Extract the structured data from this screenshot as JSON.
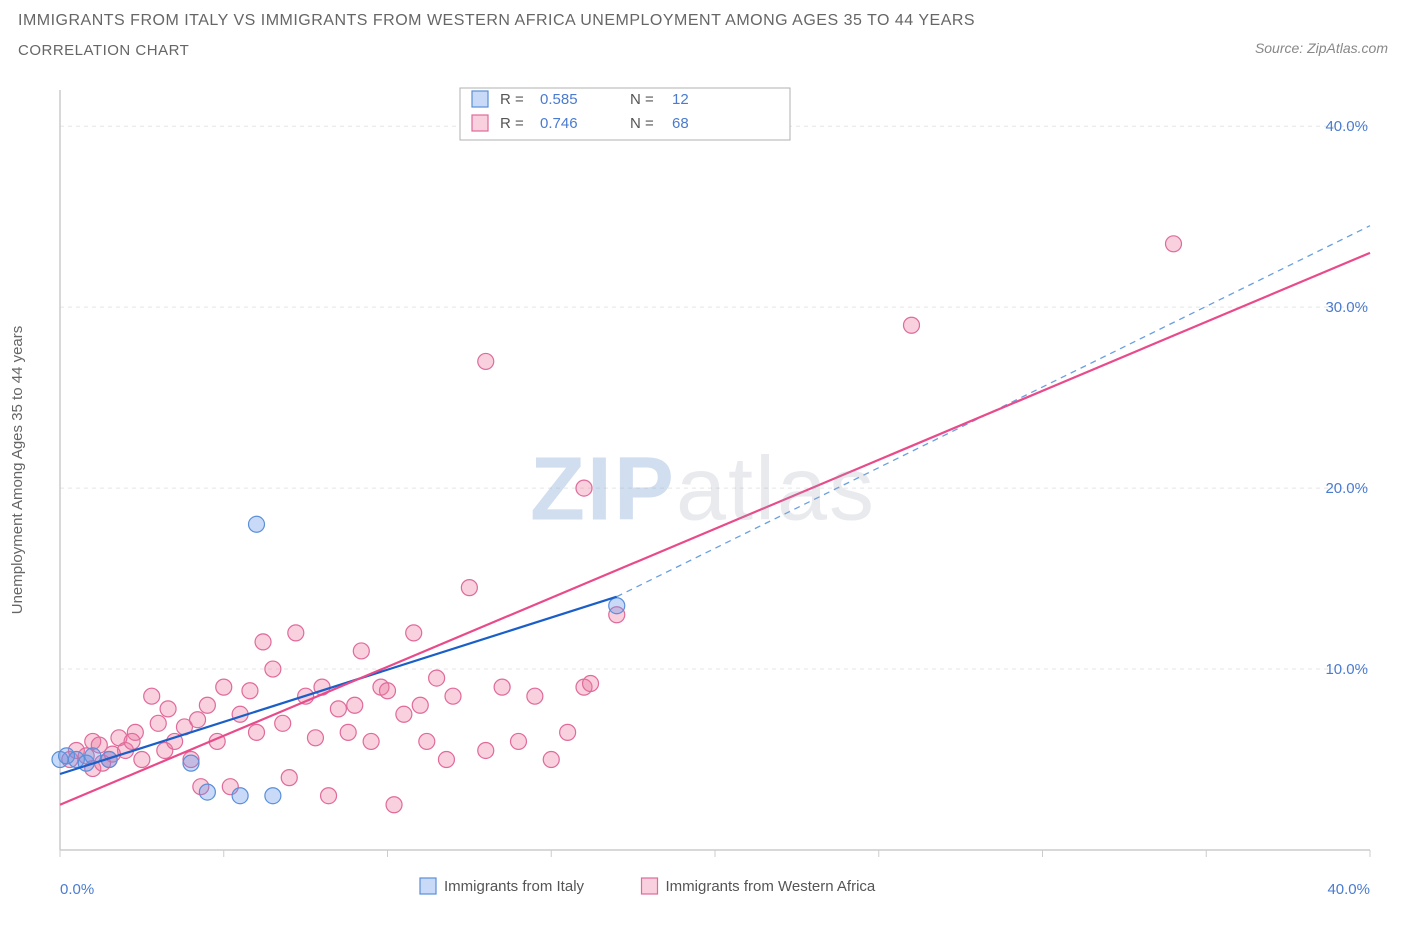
{
  "title_line1": "IMMIGRANTS FROM ITALY VS IMMIGRANTS FROM WESTERN AFRICA UNEMPLOYMENT AMONG AGES 35 TO 44 YEARS",
  "title_line2": "CORRELATION CHART",
  "source_prefix": "Source: ",
  "source_name": "ZipAtlas.com",
  "watermark_zip": "ZIP",
  "watermark_rest": "atlas",
  "chart": {
    "type": "scatter",
    "xlim": [
      0,
      40
    ],
    "ylim": [
      0,
      42
    ],
    "x_axis_label_min": "0.0%",
    "x_axis_label_max": "40.0%",
    "y_label": "Unemployment Among Ages 35 to 44 years",
    "y_ticks": [
      10,
      20,
      30,
      40
    ],
    "y_tick_labels": [
      "10.0%",
      "20.0%",
      "30.0%",
      "40.0%"
    ],
    "x_minor_ticks": [
      0,
      5,
      10,
      15,
      20,
      25,
      30,
      35,
      40
    ],
    "background_color": "#ffffff",
    "grid_color": "#e5e5e5",
    "axis_color": "#cccccc",
    "tick_label_color": "#4a7bd0",
    "axis_text_color": "#666666",
    "series": [
      {
        "name": "Immigrants from Italy",
        "color_fill": "rgba(100,150,235,0.35)",
        "color_stroke": "#5a8fd8",
        "trend": {
          "x1": 0,
          "y1": 4.2,
          "x2": 17,
          "y2": 14.0,
          "color": "#1a5fc7",
          "width": 2.2
        },
        "dash": {
          "x1": 17,
          "y1": 14.0,
          "x2": 40,
          "y2": 34.5,
          "color": "#6a9fe0"
        },
        "correlation_R": "0.585",
        "correlation_N": "12",
        "marker_r": 8,
        "points": [
          {
            "x": 0.0,
            "y": 5.0
          },
          {
            "x": 0.2,
            "y": 5.2
          },
          {
            "x": 0.5,
            "y": 5.0
          },
          {
            "x": 0.8,
            "y": 4.8
          },
          {
            "x": 1.0,
            "y": 5.2
          },
          {
            "x": 1.5,
            "y": 5.0
          },
          {
            "x": 4.0,
            "y": 4.8
          },
          {
            "x": 4.5,
            "y": 3.2
          },
          {
            "x": 5.5,
            "y": 3.0
          },
          {
            "x": 6.5,
            "y": 3.0
          },
          {
            "x": 6.0,
            "y": 18.0
          },
          {
            "x": 17.0,
            "y": 13.5
          }
        ]
      },
      {
        "name": "Immigrants from Western Africa",
        "color_fill": "rgba(235,120,160,0.35)",
        "color_stroke": "#e06a9a",
        "trend": {
          "x1": 0,
          "y1": 2.5,
          "x2": 40,
          "y2": 33.0,
          "color": "#e94a8a",
          "width": 2.2
        },
        "correlation_R": "0.746",
        "correlation_N": "68",
        "marker_r": 8,
        "points": [
          {
            "x": 0.3,
            "y": 5.0
          },
          {
            "x": 0.5,
            "y": 5.5
          },
          {
            "x": 0.8,
            "y": 5.2
          },
          {
            "x": 1.0,
            "y": 6.0
          },
          {
            "x": 1.2,
            "y": 5.8
          },
          {
            "x": 1.5,
            "y": 5.0
          },
          {
            "x": 1.8,
            "y": 6.2
          },
          {
            "x": 2.0,
            "y": 5.5
          },
          {
            "x": 2.3,
            "y": 6.5
          },
          {
            "x": 2.5,
            "y": 5.0
          },
          {
            "x": 2.8,
            "y": 8.5
          },
          {
            "x": 3.0,
            "y": 7.0
          },
          {
            "x": 3.2,
            "y": 5.5
          },
          {
            "x": 3.5,
            "y": 6.0
          },
          {
            "x": 3.8,
            "y": 6.8
          },
          {
            "x": 4.0,
            "y": 5.0
          },
          {
            "x": 4.2,
            "y": 7.2
          },
          {
            "x": 4.5,
            "y": 8.0
          },
          {
            "x": 4.8,
            "y": 6.0
          },
          {
            "x": 5.0,
            "y": 9.0
          },
          {
            "x": 5.2,
            "y": 3.5
          },
          {
            "x": 5.5,
            "y": 7.5
          },
          {
            "x": 5.8,
            "y": 8.8
          },
          {
            "x": 6.0,
            "y": 6.5
          },
          {
            "x": 6.2,
            "y": 11.5
          },
          {
            "x": 6.5,
            "y": 10.0
          },
          {
            "x": 6.8,
            "y": 7.0
          },
          {
            "x": 7.0,
            "y": 4.0
          },
          {
            "x": 7.2,
            "y": 12.0
          },
          {
            "x": 7.5,
            "y": 8.5
          },
          {
            "x": 7.8,
            "y": 6.2
          },
          {
            "x": 8.0,
            "y": 9.0
          },
          {
            "x": 8.2,
            "y": 3.0
          },
          {
            "x": 8.5,
            "y": 7.8
          },
          {
            "x": 8.8,
            "y": 6.5
          },
          {
            "x": 9.0,
            "y": 8.0
          },
          {
            "x": 9.2,
            "y": 11.0
          },
          {
            "x": 9.5,
            "y": 6.0
          },
          {
            "x": 9.8,
            "y": 9.0
          },
          {
            "x": 10.0,
            "y": 8.8
          },
          {
            "x": 10.2,
            "y": 2.5
          },
          {
            "x": 10.5,
            "y": 7.5
          },
          {
            "x": 10.8,
            "y": 12.0
          },
          {
            "x": 11.0,
            "y": 8.0
          },
          {
            "x": 11.2,
            "y": 6.0
          },
          {
            "x": 11.5,
            "y": 9.5
          },
          {
            "x": 11.8,
            "y": 5.0
          },
          {
            "x": 12.0,
            "y": 8.5
          },
          {
            "x": 12.5,
            "y": 14.5
          },
          {
            "x": 13.0,
            "y": 5.5
          },
          {
            "x": 13.5,
            "y": 9.0
          },
          {
            "x": 14.0,
            "y": 6.0
          },
          {
            "x": 14.5,
            "y": 8.5
          },
          {
            "x": 15.0,
            "y": 5.0
          },
          {
            "x": 15.5,
            "y": 6.5
          },
          {
            "x": 16.0,
            "y": 9.0
          },
          {
            "x": 16.2,
            "y": 9.2
          },
          {
            "x": 13.0,
            "y": 27.0
          },
          {
            "x": 16.0,
            "y": 20.0
          },
          {
            "x": 17.0,
            "y": 13.0
          },
          {
            "x": 26.0,
            "y": 29.0
          },
          {
            "x": 34.0,
            "y": 33.5
          },
          {
            "x": 1.0,
            "y": 4.5
          },
          {
            "x": 1.3,
            "y": 4.8
          },
          {
            "x": 1.6,
            "y": 5.3
          },
          {
            "x": 2.2,
            "y": 6.0
          },
          {
            "x": 3.3,
            "y": 7.8
          },
          {
            "x": 4.3,
            "y": 3.5
          }
        ]
      }
    ],
    "legend_top": {
      "box_border": "#b0b0b0",
      "R_label": "R =",
      "N_label": "N ="
    },
    "legend_bottom": {
      "items": [
        {
          "label": "Immigrants from Italy",
          "fill": "rgba(100,150,235,0.35)",
          "stroke": "#5a8fd8"
        },
        {
          "label": "Immigrants from Western Africa",
          "fill": "rgba(235,120,160,0.35)",
          "stroke": "#e06a9a"
        }
      ]
    }
  }
}
